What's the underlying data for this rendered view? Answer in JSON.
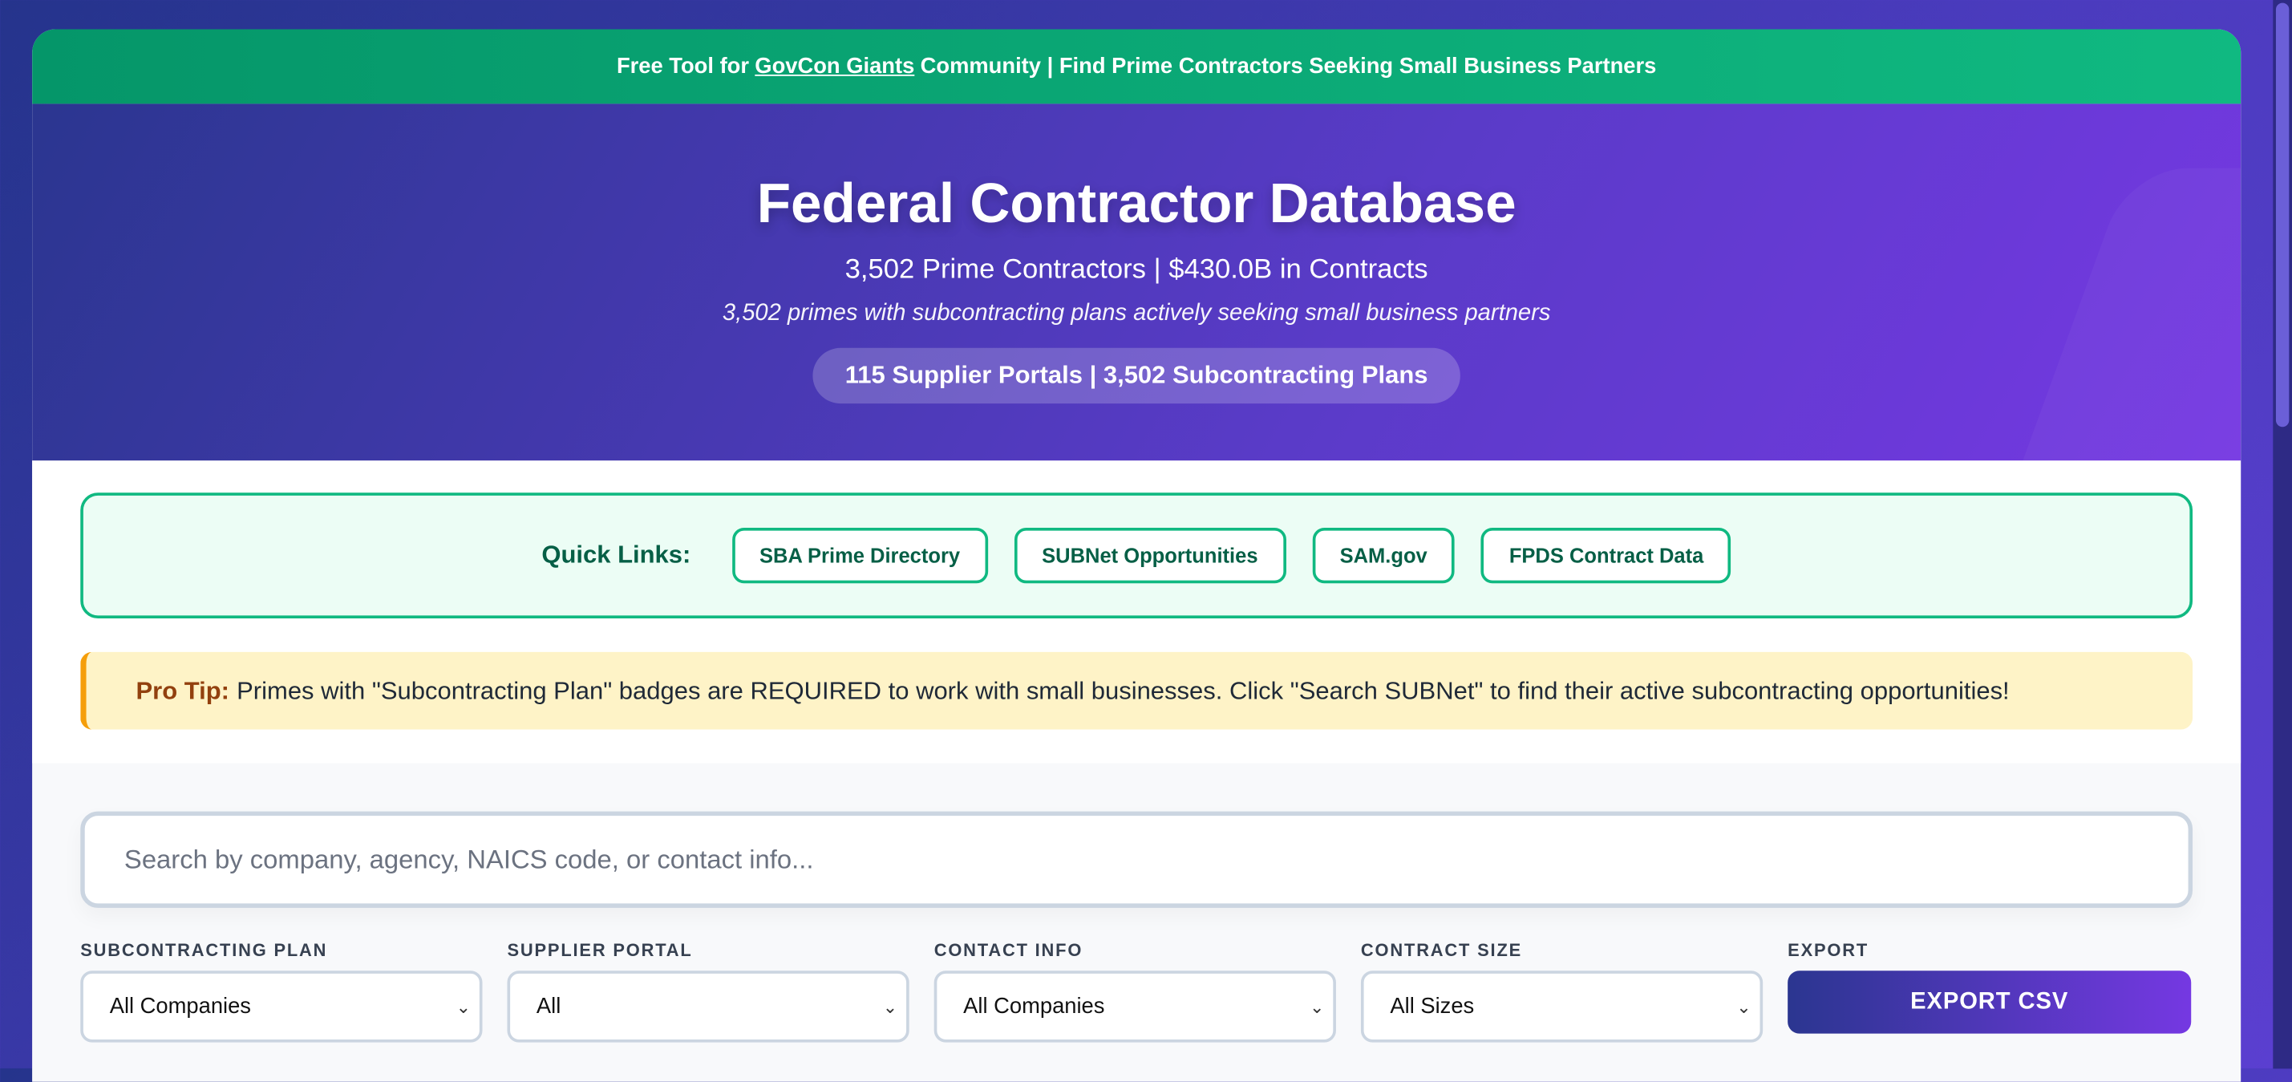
{
  "banner": {
    "prefix": "Free Tool for",
    "link": "GovCon Giants",
    "suffix": "Community | Find Prime Contractors Seeking Small Business Partners"
  },
  "hero": {
    "title": "Federal Contractor Database",
    "subtitle": "3,502 Prime Contractors | $430.0B in Contracts",
    "tagline": "3,502 primes with subcontracting plans actively seeking small business partners",
    "pill": "115 Supplier Portals | 3,502 Subcontracting Plans"
  },
  "quick_links": {
    "label": "Quick Links:",
    "items": [
      "SBA Prime Directory",
      "SUBNet Opportunities",
      "SAM.gov",
      "FPDS Contract Data"
    ]
  },
  "tip": {
    "label": "Pro Tip:",
    "text": "Primes with \"Subcontracting Plan\" badges are REQUIRED to work with small businesses. Click \"Search SUBNet\" to find their active subcontracting opportunities!"
  },
  "search": {
    "placeholder": "Search by company, agency, NAICS code, or contact info...",
    "value": ""
  },
  "filters": [
    {
      "label": "Subcontracting Plan",
      "value": "All Companies"
    },
    {
      "label": "Supplier Portal",
      "value": "All"
    },
    {
      "label": "Contact Info",
      "value": "All Companies"
    },
    {
      "label": "Contract Size",
      "value": "All Sizes"
    }
  ],
  "export": {
    "label": "Export",
    "button": "EXPORT CSV"
  },
  "colors": {
    "banner": "#10b981",
    "accent_start": "#2b3690",
    "accent_end": "#7538e2",
    "tip_bg": "#fef3c7",
    "tip_border": "#f59e0b"
  }
}
